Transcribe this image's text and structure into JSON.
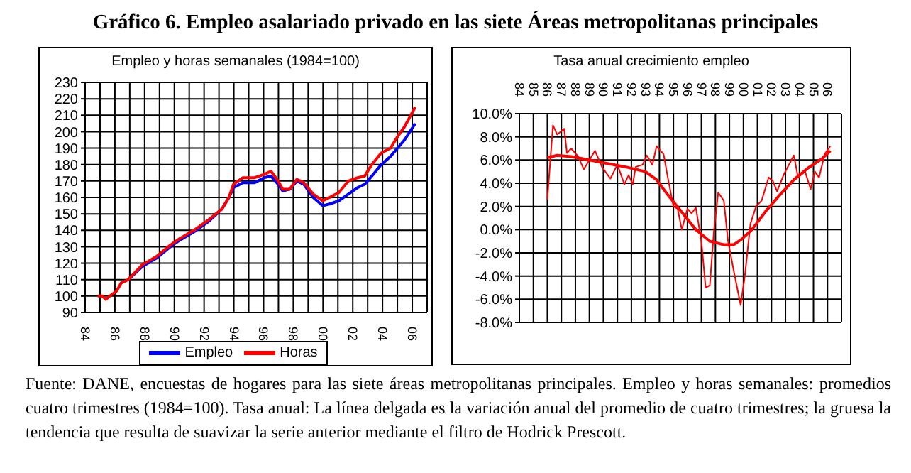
{
  "chart_data": [
    {
      "type": "line",
      "title": "Empleo y horas semanales (1984=100)",
      "annotations": [
        "Gráfico 6. Empleo asalariado privado en las siete Áreas metropolitanas principales"
      ],
      "x": [
        1984.85,
        1985.17,
        1985.39,
        1985.8,
        1986.11,
        1986.43,
        1986.9,
        1987.84,
        1988.79,
        1989.73,
        1990.36,
        1991.31,
        1992.25,
        1993.2,
        1993.67,
        1993.98,
        1994.61,
        1995.4,
        1996.03,
        1996.5,
        1996.98,
        1997.29,
        1997.76,
        1998.24,
        1998.71,
        1999.34,
        1999.97,
        2000.44,
        2001.07,
        2001.7,
        2002.33,
        2002.8,
        2003.28,
        2003.91,
        2004.54,
        2005.01,
        2005.48,
        2006.2
      ],
      "series": [
        {
          "name": "Empleo",
          "color": "#0000ff",
          "values": [
            null,
            null,
            null,
            null,
            null,
            null,
            110,
            118,
            123,
            130,
            134,
            139,
            145,
            153,
            160,
            166,
            169,
            169,
            172,
            173,
            168,
            164,
            165,
            170,
            168,
            160,
            155,
            156,
            158,
            162,
            166,
            168,
            173,
            180,
            185,
            190,
            195,
            205
          ]
        },
        {
          "name": "Horas",
          "color": "#ff0000",
          "values": [
            100,
            100,
            98,
            101,
            103,
            108,
            110,
            119,
            124,
            131,
            135,
            140,
            146,
            153,
            160,
            168,
            172,
            172,
            174,
            176,
            170,
            165,
            165,
            171,
            169,
            162,
            158,
            160,
            163,
            170,
            172,
            173,
            180,
            187,
            190,
            197,
            203,
            215
          ]
        }
      ],
      "xlim": [
        1984,
        2007
      ],
      "xticks": [
        {
          "value": 1984,
          "label": "84"
        },
        {
          "value": 1985,
          "label": null
        },
        {
          "value": 1986,
          "label": "86"
        },
        {
          "value": 1987,
          "label": null
        },
        {
          "value": 1988,
          "label": "88"
        },
        {
          "value": 1989,
          "label": null
        },
        {
          "value": 1990,
          "label": "90"
        },
        {
          "value": 1991,
          "label": null
        },
        {
          "value": 1992,
          "label": "92"
        },
        {
          "value": 1993,
          "label": null
        },
        {
          "value": 1994,
          "label": "94"
        },
        {
          "value": 1995,
          "label": null
        },
        {
          "value": 1996,
          "label": "96"
        },
        {
          "value": 1997,
          "label": null
        },
        {
          "value": 1998,
          "label": "98"
        },
        {
          "value": 1999,
          "label": null
        },
        {
          "value": 2000,
          "label": "00"
        },
        {
          "value": 2001,
          "label": null
        },
        {
          "value": 2002,
          "label": "02"
        },
        {
          "value": 2003,
          "label": null
        },
        {
          "value": 2004,
          "label": "04"
        },
        {
          "value": 2005,
          "label": null
        },
        {
          "value": 2006,
          "label": "06"
        }
      ],
      "ylim": [
        90,
        230
      ],
      "yticks": [
        90,
        100,
        110,
        120,
        130,
        140,
        150,
        160,
        170,
        180,
        190,
        200,
        210,
        220,
        230
      ],
      "grid": true,
      "legend": "bottom",
      "marker": "none",
      "line_style": "solid"
    },
    {
      "type": "line",
      "title": "Tasa anual crecimiento empleo",
      "annotations": [
        "Fuente: DANE, encuestas de hogares para las siete áreas metropolitanas principales. Empleo y horas semanales: promedios cuatro trimestres (1984=100). Tasa anual: La línea delgada es la variación anual del promedio de cuatro trimestres; la gruesa la tendencia que resulta de suavizar la serie anterior mediante el filtro de Hodrick Prescott."
      ],
      "series": [
        {
          "color": "#ff0000",
          "x": [
            1986.0,
            1986.4,
            1986.7,
            1987.2,
            1987.4,
            1987.7,
            1988.2,
            1988.6,
            1989.0,
            1989.4,
            1989.9,
            1990.5,
            1991.0,
            1991.5,
            1991.8,
            1992.1,
            1992.3,
            1992.8,
            1993.1,
            1993.5,
            1993.8,
            1994.3,
            1994.6,
            1995.0,
            1995.3,
            1995.6,
            1996.0,
            1996.3,
            1996.6,
            1997.0,
            1997.3,
            1997.6,
            1997.9,
            1998.2,
            1998.6,
            1998.9,
            1999.3,
            1999.8,
            2000.1,
            2000.5,
            2000.9,
            2001.3,
            2001.8,
            2002.1,
            2002.4,
            2002.9,
            2003.6,
            2003.9,
            2004.4,
            2004.8,
            2005.1,
            2005.4,
            2005.8,
            2006.2
          ],
          "values": [
            2.6,
            9.0,
            8.2,
            8.7,
            6.6,
            7.0,
            6.3,
            5.2,
            6.0,
            6.8,
            5.4,
            4.4,
            5.6,
            3.9,
            4.7,
            3.9,
            5.4,
            5.6,
            6.4,
            5.6,
            7.2,
            6.5,
            4.5,
            2.0,
            1.8,
            0.0,
            1.8,
            1.4,
            1.9,
            -1.0,
            -5.0,
            -4.8,
            0.0,
            3.2,
            2.5,
            -1.0,
            -3.5,
            -6.5,
            -4.0,
            0.5,
            2.0,
            2.5,
            4.5,
            4.2,
            3.3,
            4.8,
            6.4,
            4.5,
            5.0,
            3.5,
            5.0,
            4.5,
            6.5,
            7.2
          ]
        },
        {
          "color": "#ff0000",
          "x": [
            1986.0,
            1986.7,
            1987.7,
            1989.0,
            1990.3,
            1991.6,
            1993.0,
            1993.8,
            1994.6,
            1995.6,
            1996.6,
            1997.6,
            1998.6,
            1999.3,
            1999.9,
            2000.6,
            2001.6,
            2002.6,
            2003.6,
            2004.6,
            2005.6,
            2006.2
          ],
          "values": [
            6.2,
            6.4,
            6.3,
            6.0,
            5.7,
            5.4,
            5.0,
            4.3,
            3.0,
            1.5,
            0.0,
            -1.0,
            -1.3,
            -1.3,
            -0.8,
            0.0,
            1.6,
            3.0,
            4.3,
            5.3,
            6.1,
            6.8
          ]
        }
      ],
      "xlim": [
        1984,
        2007
      ],
      "xticks": [
        {
          "value": 1984,
          "label": "84"
        },
        {
          "value": 1985,
          "label": "85"
        },
        {
          "value": 1986,
          "label": "86"
        },
        {
          "value": 1987,
          "label": "87"
        },
        {
          "value": 1988,
          "label": "88"
        },
        {
          "value": 1989,
          "label": "89"
        },
        {
          "value": 1990,
          "label": "90"
        },
        {
          "value": 1991,
          "label": "91"
        },
        {
          "value": 1992,
          "label": "92"
        },
        {
          "value": 1993,
          "label": "93"
        },
        {
          "value": 1994,
          "label": "94"
        },
        {
          "value": 1995,
          "label": "95"
        },
        {
          "value": 1996,
          "label": "96"
        },
        {
          "value": 1997,
          "label": "97"
        },
        {
          "value": 1998,
          "label": "98"
        },
        {
          "value": 1999,
          "label": "99"
        },
        {
          "value": 2000,
          "label": "00"
        },
        {
          "value": 2001,
          "label": "01"
        },
        {
          "value": 2002,
          "label": "02"
        },
        {
          "value": 2003,
          "label": "03"
        },
        {
          "value": 2004,
          "label": "04"
        },
        {
          "value": 2005,
          "label": "05"
        },
        {
          "value": 2006,
          "label": "06"
        }
      ],
      "ylim": [
        -8,
        10
      ],
      "yticks": [
        {
          "value": 10,
          "label": "10.0%"
        },
        {
          "value": 8,
          "label": "8.0%"
        },
        {
          "value": 6,
          "label": "6.0%"
        },
        {
          "value": 4,
          "label": "4.0%"
        },
        {
          "value": 2,
          "label": "2.0%"
        },
        {
          "value": 0,
          "label": "0.0%"
        },
        {
          "value": -2,
          "label": "-2.0%"
        },
        {
          "value": -4,
          "label": "-4.0%"
        },
        {
          "value": -6,
          "label": "-6.0%"
        },
        {
          "value": -8,
          "label": "-8.0%"
        }
      ],
      "grid": true,
      "marker": "none",
      "line_style": "solid"
    }
  ]
}
